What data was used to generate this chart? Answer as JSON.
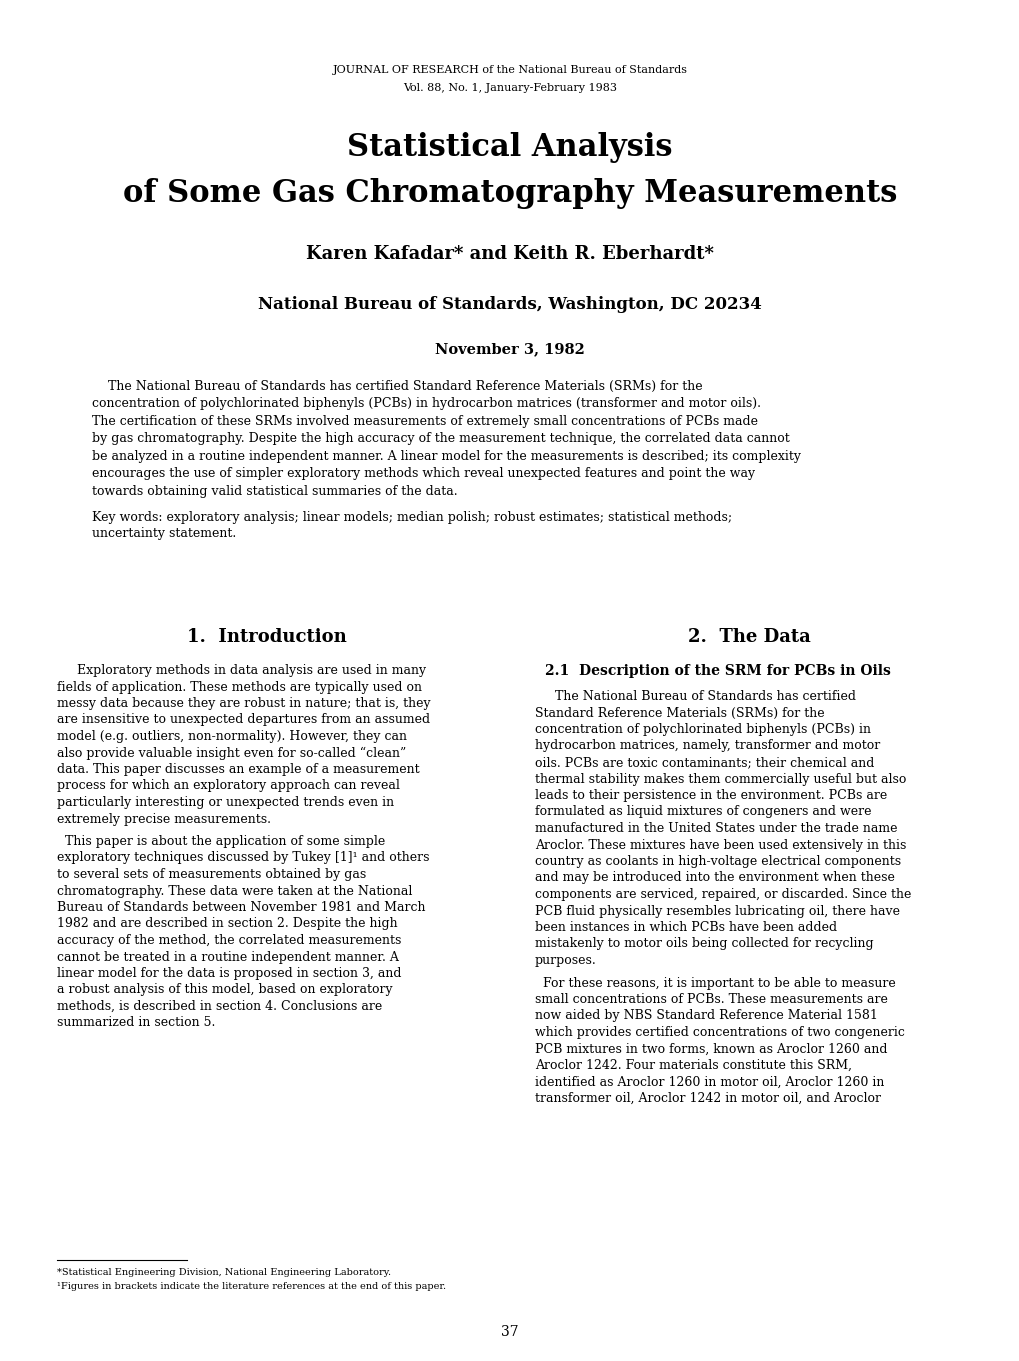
{
  "background_color": "#ffffff",
  "page_width": 10.2,
  "page_height": 13.61,
  "dpi": 100,
  "journal_header_line1": "JOURNAL OF RESEARCH of the National Bureau of Standards",
  "journal_header_line2": "Vol. 88, No. 1, January-February 1983",
  "main_title_line1": "Statistical Analysis",
  "main_title_line2": "of Some Gas Chromatography Measurements",
  "authors": "Karen Kafadar* and Keith R. Eberhardt*",
  "affiliation": "National Bureau of Standards, Washington, DC 20234",
  "date": "November 3, 1982",
  "abs_lines": [
    "    The National Bureau of Standards has certified Standard Reference Materials (SRMs) for the",
    "concentration of polychlorinated biphenyls (PCBs) in hydrocarbon matrices (transformer and motor oils).",
    "The certification of these SRMs involved measurements of extremely small concentrations of PCBs made",
    "by gas chromatography. Despite the high accuracy of the measurement technique, the correlated data cannot",
    "be analyzed in a routine independent manner. A linear model for the measurements is described; its complexity",
    "encourages the use of simpler exploratory methods which reveal unexpected features and point the way",
    "towards obtaining valid statistical summaries of the data."
  ],
  "kw_lines": [
    "Key words: exploratory analysis; linear models; median polish; robust estimates; statistical methods;",
    "uncertainty statement."
  ],
  "section1_title": "1.  Introduction",
  "s1p1_lines": [
    "Exploratory methods in data analysis are used in many",
    "fields of application. These methods are typically used on",
    "messy data because they are robust in nature; that is, they",
    "are insensitive to unexpected departures from an assumed",
    "model (e.g. outliers, non-normality). However, they can",
    "also provide valuable insight even for so-called “clean”",
    "data. This paper discusses an example of a measurement",
    "process for which an exploratory approach can reveal",
    "particularly interesting or unexpected trends even in",
    "extremely precise measurements."
  ],
  "s1p2_lines": [
    "  This paper is about the application of some simple",
    "exploratory techniques discussed by Tukey [1]¹ and others",
    "to several sets of measurements obtained by gas",
    "chromatography. These data were taken at the National",
    "Bureau of Standards between November 1981 and March",
    "1982 and are described in section 2. Despite the high",
    "accuracy of the method, the correlated measurements",
    "cannot be treated in a routine independent manner. A",
    "linear model for the data is proposed in section 3, and",
    "a robust analysis of this model, based on exploratory",
    "methods, is described in section 4. Conclusions are",
    "summarized in section 5."
  ],
  "footnote_line1": "*Statistical Engineering Division, National Engineering Laboratory.",
  "footnote_line2": "¹Figures in brackets indicate the literature references at the end of this paper.",
  "section2_title": "2.  The Data",
  "section2_sub_title": "2.1  Description of the SRM for PCBs in Oils",
  "s2p1_lines": [
    "The National Bureau of Standards has certified",
    "Standard Reference Materials (SRMs) for the",
    "concentration of polychlorinated biphenyls (PCBs) in",
    "hydrocarbon matrices, namely, transformer and motor",
    "oils. PCBs are toxic contaminants; their chemical and",
    "thermal stability makes them commercially useful but also",
    "leads to their persistence in the environment. PCBs are",
    "formulated as liquid mixtures of congeners and were",
    "manufactured in the United States under the trade name",
    "Aroclor. These mixtures have been used extensively in this",
    "country as coolants in high-voltage electrical components",
    "and may be introduced into the environment when these",
    "components are serviced, repaired, or discarded. Since the",
    "PCB fluid physically resembles lubricating oil, there have",
    "been instances in which PCBs have been added",
    "mistakenly to motor oils being collected for recycling",
    "purposes."
  ],
  "s2p2_lines": [
    "  For these reasons, it is important to be able to measure",
    "small concentrations of PCBs. These measurements are",
    "now aided by NBS Standard Reference Material 1581",
    "which provides certified concentrations of two congeneric",
    "PCB mixtures in two forms, known as Aroclor 1260 and",
    "Aroclor 1242. Four materials constitute this SRM,",
    "identified as Aroclor 1260 in motor oil, Aroclor 1260 in",
    "transformer oil, Aroclor 1242 in motor oil, and Aroclor"
  ],
  "page_number": "37",
  "header_fontsize": 8.0,
  "title_fontsize": 22,
  "authors_fontsize": 13,
  "affil_fontsize": 12,
  "date_fontsize": 10.5,
  "abs_fontsize": 9.0,
  "kw_fontsize": 9.0,
  "section_title_fontsize": 13,
  "subsection_title_fontsize": 10,
  "body_fontsize": 9.0,
  "footnote_fontsize": 7.0,
  "page_num_fontsize": 10
}
